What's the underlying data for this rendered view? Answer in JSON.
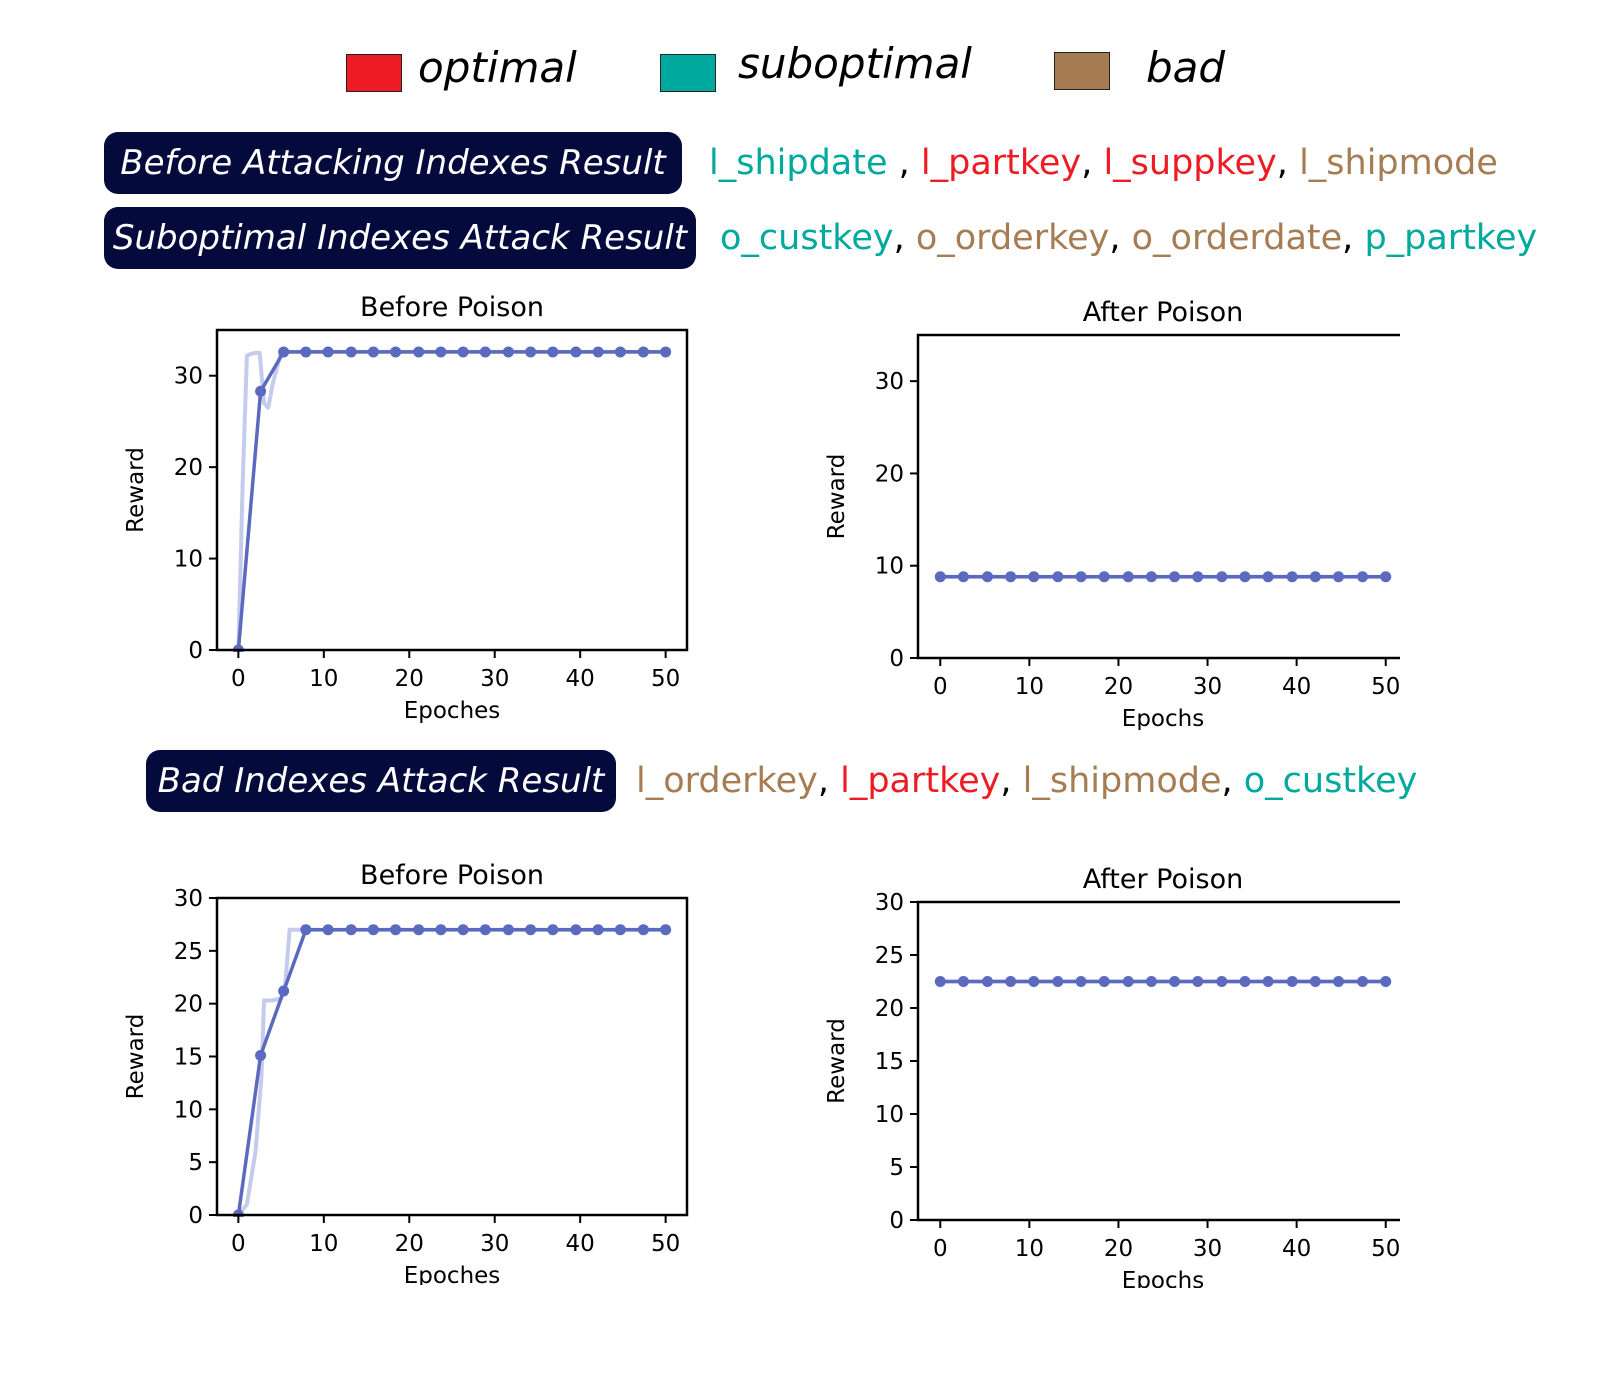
{
  "colors": {
    "optimal": "#ed1c24",
    "suboptimal": "#00a99d",
    "bad": "#a67c52",
    "pill_bg": "#050a3c",
    "series_main": "#5b6abf",
    "series_shadow": "#c5cbec"
  },
  "legend": [
    {
      "label": "optimal",
      "category": "optimal"
    },
    {
      "label": "suboptimal",
      "category": "suboptimal"
    },
    {
      "label": "bad",
      "category": "bad"
    }
  ],
  "results": [
    {
      "label": "Before Attacking Indexes Result",
      "indexes": [
        {
          "name": "l_shipdate",
          "category": "suboptimal"
        },
        {
          "name": "l_partkey",
          "category": "optimal"
        },
        {
          "name": "l_suppkey",
          "category": "optimal"
        },
        {
          "name": "l_shipmode",
          "category": "bad"
        }
      ]
    },
    {
      "label": "Suboptimal Indexes Attack Result",
      "indexes": [
        {
          "name": "o_custkey",
          "category": "suboptimal"
        },
        {
          "name": "o_orderkey",
          "category": "bad"
        },
        {
          "name": "o_orderdate",
          "category": "bad"
        },
        {
          "name": "p_partkey",
          "category": "suboptimal"
        }
      ]
    },
    {
      "label": "Bad Indexes Attack Result",
      "indexes": [
        {
          "name": "l_orderkey",
          "category": "bad"
        },
        {
          "name": "l_partkey",
          "category": "optimal"
        },
        {
          "name": "l_shipmode",
          "category": "bad"
        },
        {
          "name": "o_custkey",
          "category": "suboptimal"
        }
      ]
    }
  ],
  "chart_data": [
    {
      "type": "line",
      "title": "Before Poison",
      "xlabel": "Epoches",
      "ylabel": "Reward",
      "xlim": [
        -2.5,
        52.5
      ],
      "ylim": [
        0,
        35
      ],
      "xticks": [
        0,
        10,
        20,
        30,
        40,
        50
      ],
      "yticks": [
        0,
        10,
        20,
        30
      ],
      "grid": false,
      "series": [
        {
          "role": "raw",
          "x": [
            0,
            0.5,
            1,
            1.5,
            2,
            2.5,
            3,
            3.5,
            4,
            5,
            7.5,
            50
          ],
          "y": [
            0,
            18,
            32.2,
            32.4,
            32.5,
            32.5,
            27,
            26.5,
            29,
            32.6,
            32.6,
            32.6
          ]
        },
        {
          "role": "smoothed",
          "markers": true,
          "x": [
            0,
            2.6,
            5.3,
            7.9,
            10.5,
            13.2,
            15.8,
            18.4,
            21.1,
            23.7,
            26.3,
            28.9,
            31.6,
            34.2,
            36.8,
            39.5,
            42.1,
            44.7,
            47.4,
            50
          ],
          "y": [
            0,
            28.3,
            32.6,
            32.6,
            32.6,
            32.6,
            32.6,
            32.6,
            32.6,
            32.6,
            32.6,
            32.6,
            32.6,
            32.6,
            32.6,
            32.6,
            32.6,
            32.6,
            32.6,
            32.6
          ]
        }
      ]
    },
    {
      "type": "line",
      "title": "After Poison",
      "xlabel": "Epochs",
      "ylabel": "Reward",
      "xlim": [
        -2.5,
        52.5
      ],
      "ylim": [
        0,
        35
      ],
      "xticks": [
        0,
        10,
        20,
        30,
        40,
        50
      ],
      "yticks": [
        0,
        10,
        20,
        30
      ],
      "grid": false,
      "series": [
        {
          "role": "raw",
          "x": [
            0,
            50
          ],
          "y": [
            8.8,
            8.8
          ]
        },
        {
          "role": "smoothed",
          "markers": true,
          "x": [
            0,
            2.6,
            5.3,
            7.9,
            10.5,
            13.2,
            15.8,
            18.4,
            21.1,
            23.7,
            26.3,
            28.9,
            31.6,
            34.2,
            36.8,
            39.5,
            42.1,
            44.7,
            47.4,
            50
          ],
          "y": [
            8.8,
            8.8,
            8.8,
            8.8,
            8.8,
            8.8,
            8.8,
            8.8,
            8.8,
            8.8,
            8.8,
            8.8,
            8.8,
            8.8,
            8.8,
            8.8,
            8.8,
            8.8,
            8.8,
            8.8
          ]
        }
      ]
    },
    {
      "type": "line",
      "title": "Before Poison",
      "xlabel": "Epoches",
      "ylabel": "Reward",
      "xlim": [
        -2.5,
        52.5
      ],
      "ylim": [
        0,
        30
      ],
      "xticks": [
        0,
        10,
        20,
        30,
        40,
        50
      ],
      "yticks": [
        0,
        5,
        10,
        15,
        20,
        25,
        30
      ],
      "grid": false,
      "series": [
        {
          "role": "raw",
          "x": [
            0,
            1,
            2,
            2.7,
            3,
            3.5,
            4,
            5,
            5.5,
            6,
            6.5,
            7,
            8,
            50
          ],
          "y": [
            0,
            1,
            6,
            13,
            20.3,
            20.3,
            20.3,
            20.5,
            22,
            27,
            27,
            27,
            27,
            27
          ]
        },
        {
          "role": "smoothed",
          "markers": true,
          "x": [
            0,
            2.6,
            5.3,
            7.9,
            10.5,
            13.2,
            15.8,
            18.4,
            21.1,
            23.7,
            26.3,
            28.9,
            31.6,
            34.2,
            36.8,
            39.5,
            42.1,
            44.7,
            47.4,
            50
          ],
          "y": [
            0,
            15.1,
            21.2,
            27,
            27,
            27,
            27,
            27,
            27,
            27,
            27,
            27,
            27,
            27,
            27,
            27,
            27,
            27,
            27,
            27
          ]
        }
      ]
    },
    {
      "type": "line",
      "title": "After Poison",
      "xlabel": "Epochs",
      "ylabel": "Reward",
      "xlim": [
        -2.5,
        52.5
      ],
      "ylim": [
        0,
        30
      ],
      "xticks": [
        0,
        10,
        20,
        30,
        40,
        50
      ],
      "yticks": [
        0,
        5,
        10,
        15,
        20,
        25,
        30
      ],
      "grid": false,
      "series": [
        {
          "role": "raw",
          "x": [
            0,
            50
          ],
          "y": [
            22.5,
            22.5
          ]
        },
        {
          "role": "smoothed",
          "markers": true,
          "x": [
            0,
            2.6,
            5.3,
            7.9,
            10.5,
            13.2,
            15.8,
            18.4,
            21.1,
            23.7,
            26.3,
            28.9,
            31.6,
            34.2,
            36.8,
            39.5,
            42.1,
            44.7,
            47.4,
            50
          ],
          "y": [
            22.5,
            22.5,
            22.5,
            22.5,
            22.5,
            22.5,
            22.5,
            22.5,
            22.5,
            22.5,
            22.5,
            22.5,
            22.5,
            22.5,
            22.5,
            22.5,
            22.5,
            22.5,
            22.5,
            22.5
          ]
        }
      ]
    }
  ]
}
